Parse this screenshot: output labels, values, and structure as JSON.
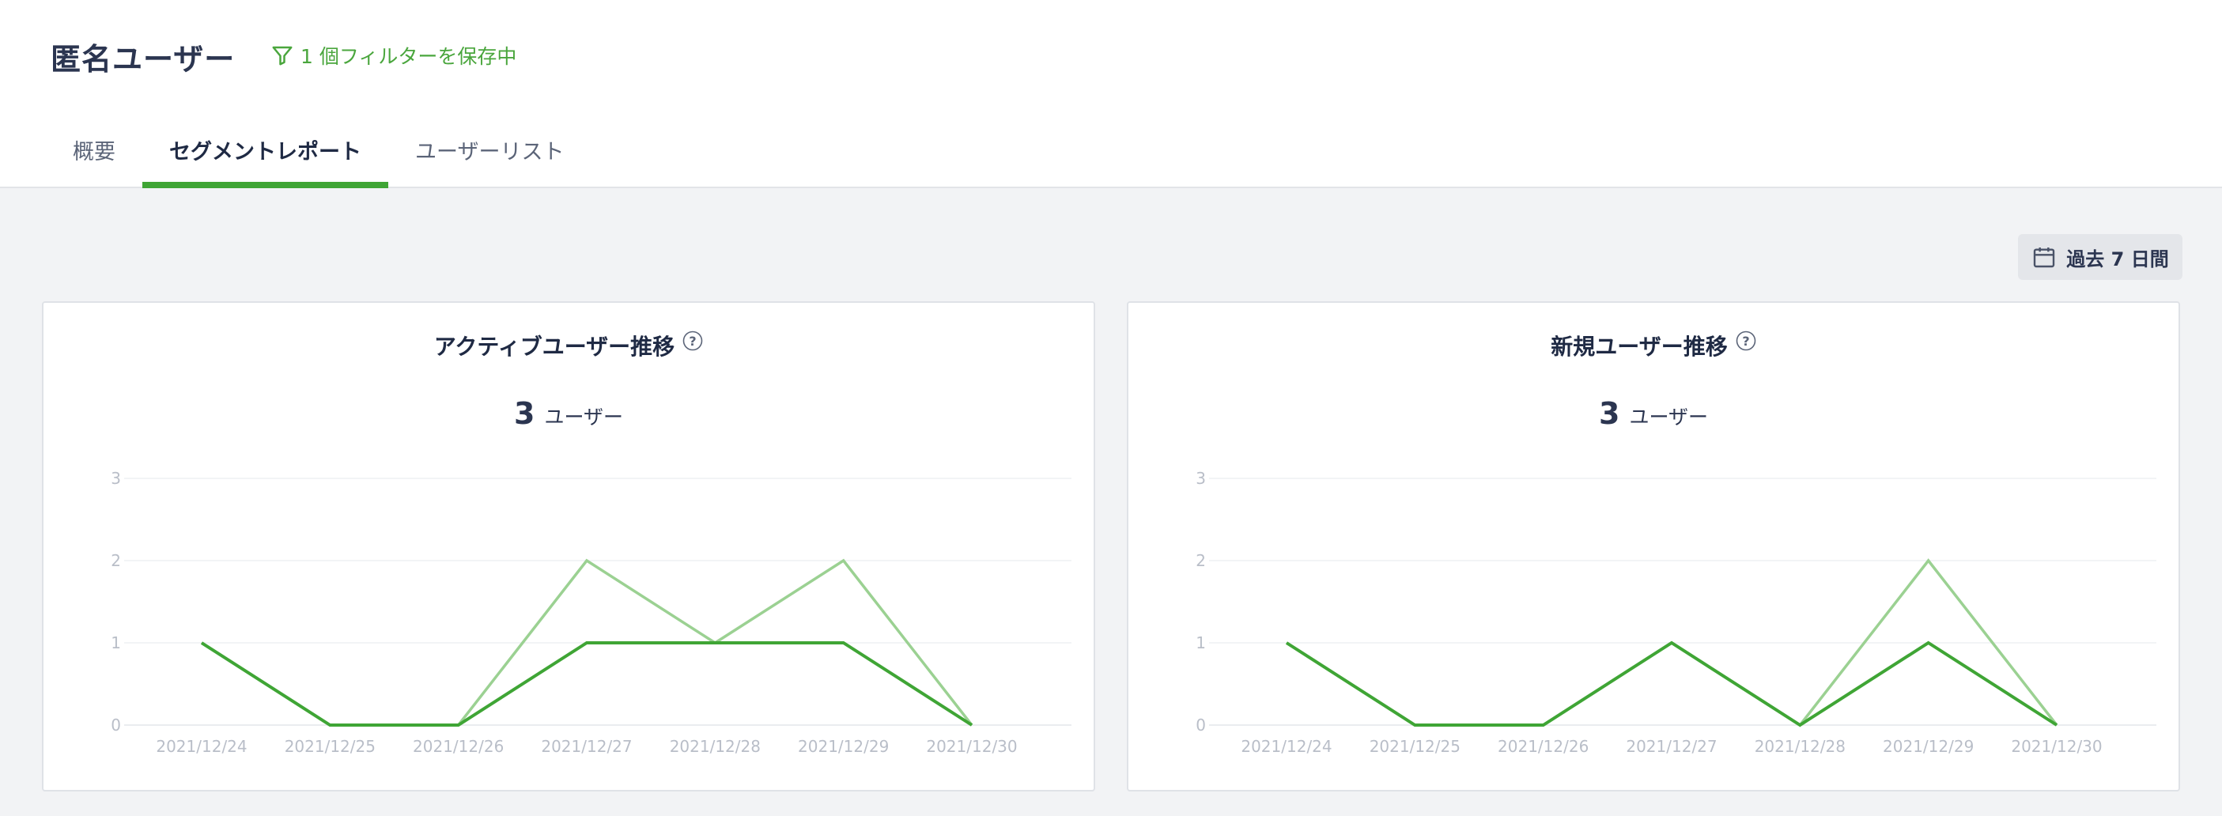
{
  "header": {
    "title": "匿名ユーザー",
    "filter_text": "1 個フィルターを保存中",
    "filter_icon": "filter-icon"
  },
  "tabs": [
    {
      "label": "概要",
      "active": false
    },
    {
      "label": "セグメントレポート",
      "active": true
    },
    {
      "label": "ユーザーリスト",
      "active": false
    }
  ],
  "period": {
    "label": "過去 7 日間",
    "icon": "calendar-icon"
  },
  "colors": {
    "accent": "#3fa535",
    "series_dark": "#3fa535",
    "series_light": "#9bd192"
  },
  "cards": [
    {
      "title": "アクティブユーザー推移",
      "total": "3",
      "unit": "ユーザー"
    },
    {
      "title": "新規ユーザー推移",
      "total": "3",
      "unit": "ユーザー"
    }
  ],
  "chart_data": [
    {
      "type": "line",
      "title": "アクティブユーザー推移",
      "categories": [
        "2021/12/24",
        "2021/12/25",
        "2021/12/26",
        "2021/12/27",
        "2021/12/28",
        "2021/12/29",
        "2021/12/30"
      ],
      "ylim": [
        0,
        3
      ],
      "yticks": [
        "0",
        "1",
        "2",
        "3"
      ],
      "grid": true,
      "series": [
        {
          "values": [
            1,
            0,
            0,
            2,
            1,
            2,
            0
          ],
          "color": "#9bd192"
        },
        {
          "values": [
            1,
            0,
            0,
            1,
            1,
            1,
            0
          ],
          "color": "#3fa535"
        }
      ]
    },
    {
      "type": "line",
      "title": "新規ユーザー推移",
      "categories": [
        "2021/12/24",
        "2021/12/25",
        "2021/12/26",
        "2021/12/27",
        "2021/12/28",
        "2021/12/29",
        "2021/12/30"
      ],
      "ylim": [
        0,
        3
      ],
      "yticks": [
        "0",
        "1",
        "2",
        "3"
      ],
      "grid": true,
      "series": [
        {
          "values": [
            1,
            0,
            0,
            1,
            0,
            2,
            0
          ],
          "color": "#9bd192"
        },
        {
          "values": [
            1,
            0,
            0,
            1,
            0,
            1,
            0
          ],
          "color": "#3fa535"
        }
      ]
    }
  ]
}
